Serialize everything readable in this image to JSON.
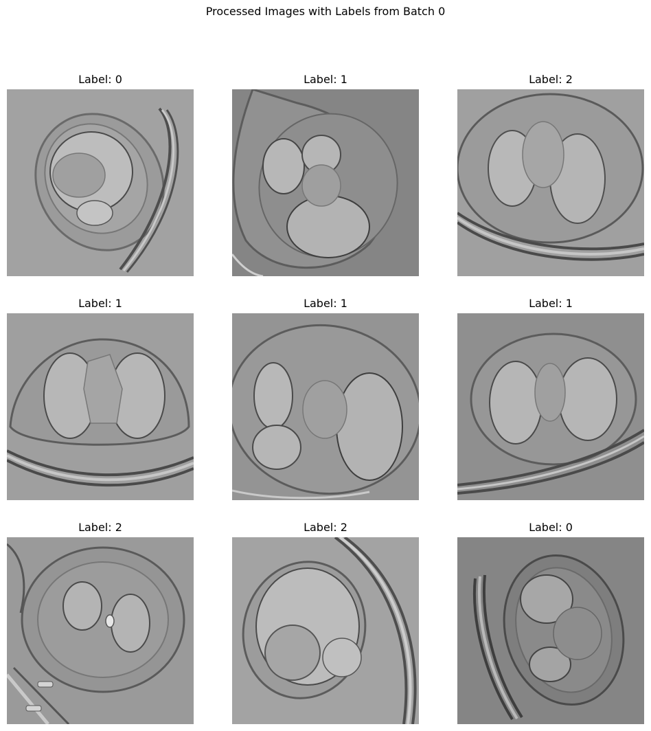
{
  "figure": {
    "title": "Processed Images with Labels from Batch 0"
  },
  "panels": [
    {
      "title": "Label: 0",
      "background": "#a2a2a2"
    },
    {
      "title": "Label: 1",
      "background": "#858585"
    },
    {
      "title": "Label: 2",
      "background": "#a0a0a0"
    },
    {
      "title": "Label: 1",
      "background": "#9f9f9f"
    },
    {
      "title": "Label: 1",
      "background": "#949494"
    },
    {
      "title": "Label: 1",
      "background": "#8f8f8f"
    },
    {
      "title": "Label: 2",
      "background": "#9a9a9a"
    },
    {
      "title": "Label: 2",
      "background": "#a3a3a3"
    },
    {
      "title": "Label: 0",
      "background": "#858585"
    }
  ]
}
